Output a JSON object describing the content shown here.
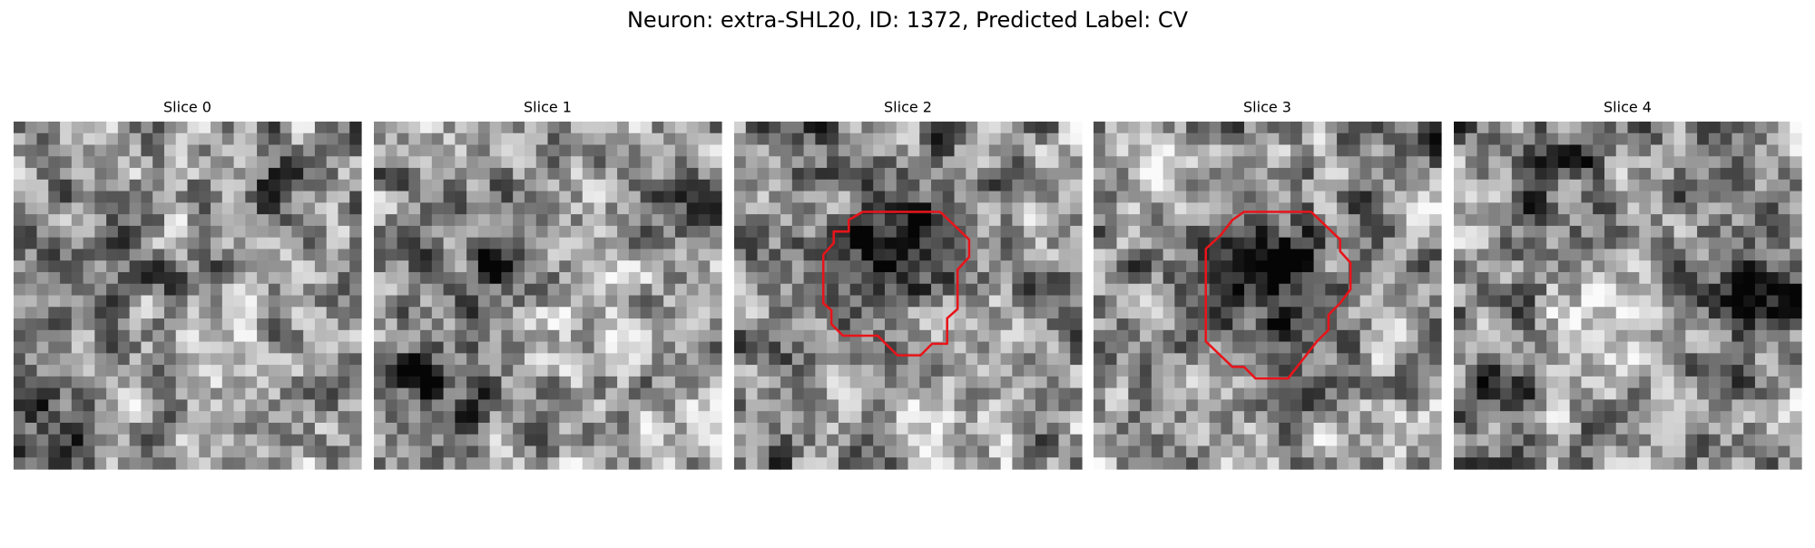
{
  "title": "Neuron: extra-SHL20, ID: 1372, Predicted Label: CV",
  "panels": [
    {
      "title": "Slice 0"
    },
    {
      "title": "Slice 1"
    },
    {
      "title": "Slice 2"
    },
    {
      "title": "Slice 3"
    },
    {
      "title": "Slice 4"
    }
  ]
}
